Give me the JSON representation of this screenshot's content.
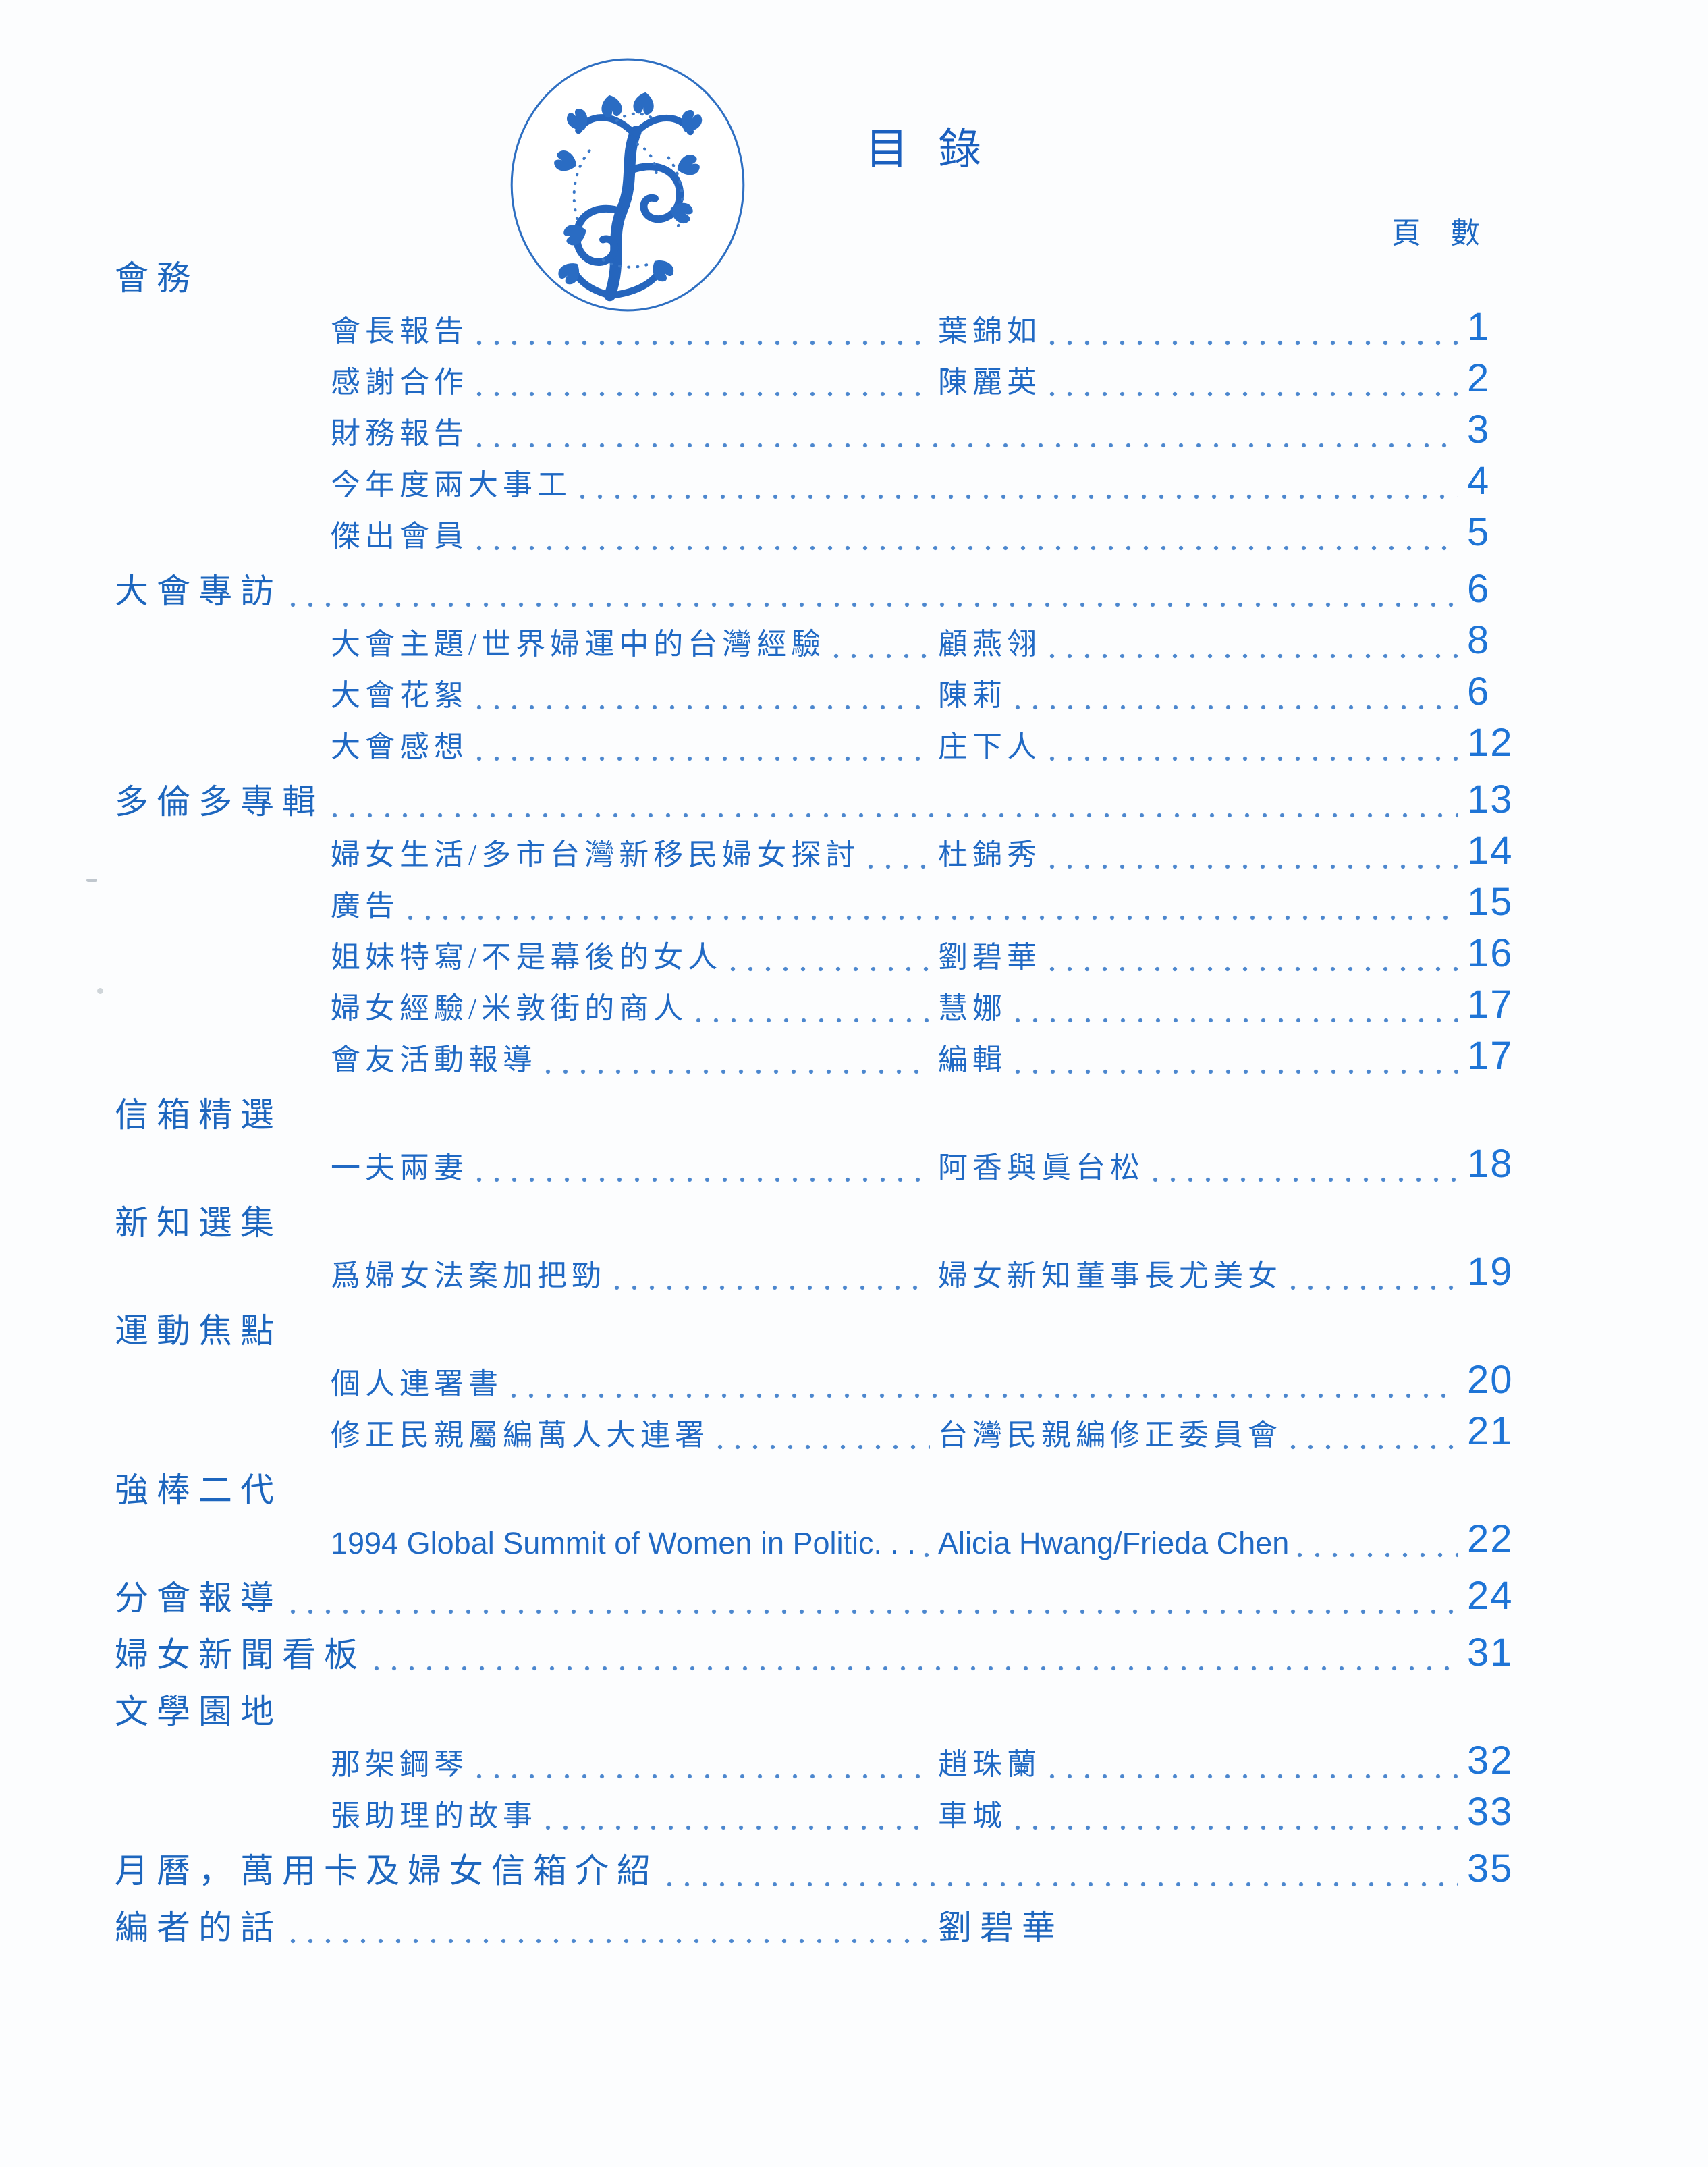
{
  "header": {
    "title": "目 錄",
    "page_count_label": "頁 數",
    "logo_icon": "floral-tree-plate"
  },
  "colors": {
    "ink_blue": "#2069c4",
    "heading_blue": "#1d66be",
    "number_blue": "#1e74d6",
    "background": "#fcfdfe"
  },
  "toc": {
    "rows": [
      {
        "kind": "section",
        "title": "會務"
      },
      {
        "kind": "item",
        "title": "會長報告",
        "author": "葉錦如",
        "page": "1"
      },
      {
        "kind": "item",
        "title": "感謝合作",
        "author": "陳麗英",
        "page": "2"
      },
      {
        "kind": "item",
        "title": "財務報告",
        "page": "3"
      },
      {
        "kind": "item",
        "title": "今年度兩大事工",
        "page": "4"
      },
      {
        "kind": "item",
        "title": "傑出會員",
        "page": "5"
      },
      {
        "kind": "section",
        "title": "大會專訪",
        "page": "6"
      },
      {
        "kind": "item",
        "title": "大會主題/世界婦運中的台灣經驗",
        "author": "顧燕翎",
        "page": "8"
      },
      {
        "kind": "item",
        "title": "大會花絮",
        "author": "陳莉",
        "page": "6"
      },
      {
        "kind": "item",
        "title": "大會感想",
        "author": "庄下人",
        "page": "12"
      },
      {
        "kind": "section",
        "title": "多倫多專輯",
        "page": "13"
      },
      {
        "kind": "item",
        "title": "婦女生活/多市台灣新移民婦女探討",
        "author": "杜錦秀",
        "page": "14"
      },
      {
        "kind": "item",
        "title": "廣告",
        "page": "15"
      },
      {
        "kind": "item",
        "title": "姐妹特寫/不是幕後的女人",
        "author": "劉碧華",
        "page": "16"
      },
      {
        "kind": "item",
        "title": "婦女經驗/米敦街的商人",
        "author": "慧娜",
        "page": "17"
      },
      {
        "kind": "item",
        "title": "會友活動報導",
        "author": "編輯",
        "page": "17"
      },
      {
        "kind": "section",
        "title": "信箱精選"
      },
      {
        "kind": "item",
        "title": "一夫兩妻",
        "author": "阿香與眞台松",
        "page": "18"
      },
      {
        "kind": "section",
        "title": "新知選集"
      },
      {
        "kind": "item",
        "title": "爲婦女法案加把勁",
        "author": "婦女新知董事長尤美女",
        "page": "19"
      },
      {
        "kind": "section",
        "title": "運動焦點"
      },
      {
        "kind": "item",
        "title": "個人連署書",
        "page": "20"
      },
      {
        "kind": "item",
        "title": "修正民親屬編萬人大連署",
        "author": "台灣民親編修正委員會",
        "page": "21"
      },
      {
        "kind": "section",
        "title": "強棒二代"
      },
      {
        "kind": "item",
        "title": "1994 Global Summit of Women in Politic. . .",
        "author": "Alicia Hwang/Frieda Chen",
        "page": "22"
      },
      {
        "kind": "section",
        "title": "分會報導",
        "page": "24"
      },
      {
        "kind": "section",
        "title": "婦女新聞看板",
        "page": "31"
      },
      {
        "kind": "section",
        "title": "文學園地"
      },
      {
        "kind": "item",
        "title": "那架鋼琴",
        "author": "趙珠蘭",
        "page": "32"
      },
      {
        "kind": "item",
        "title": "張助理的故事",
        "author": "車城",
        "page": "33"
      },
      {
        "kind": "section",
        "title": "月曆，萬用卡及婦女信箱介紹",
        "page": "35"
      },
      {
        "kind": "section",
        "title": "編者的話",
        "author": "劉碧華"
      }
    ]
  }
}
